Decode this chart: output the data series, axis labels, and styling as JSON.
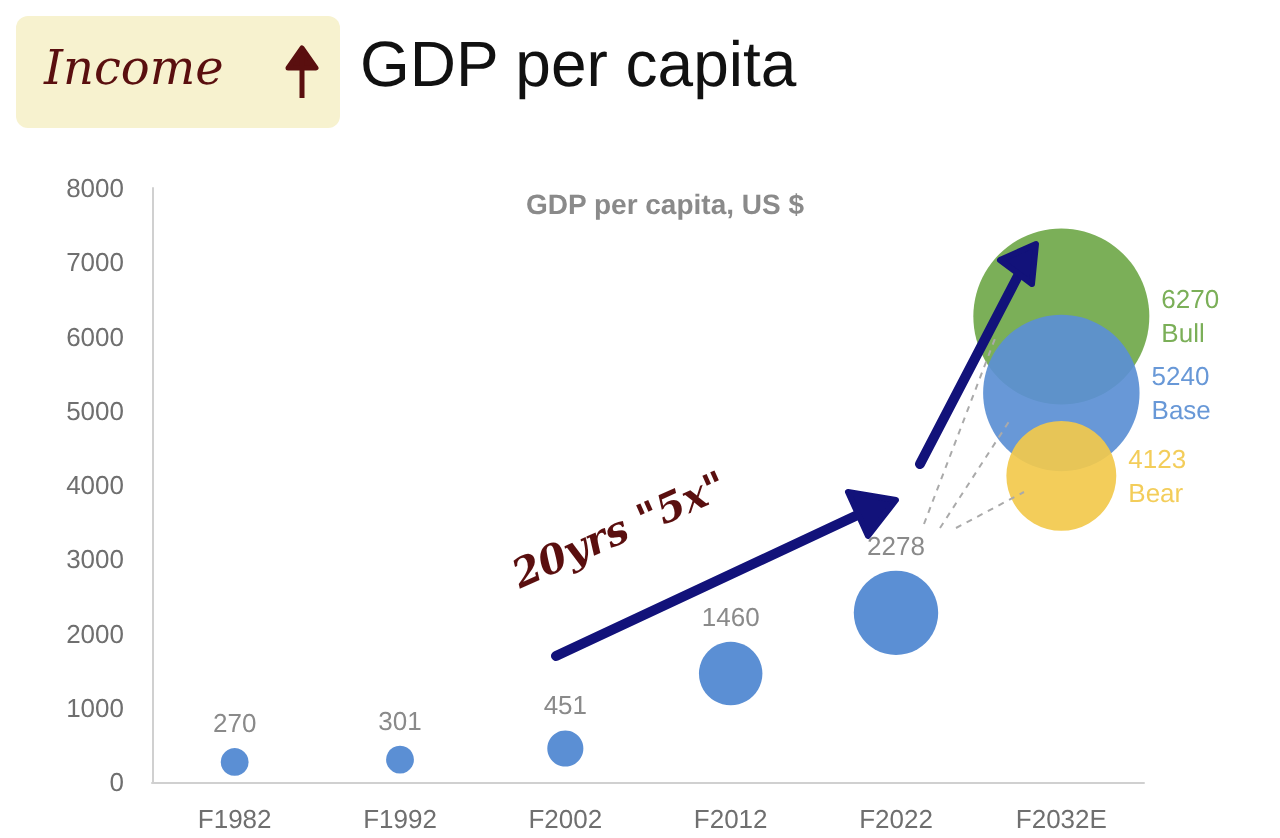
{
  "chart_data": {
    "type": "bubble",
    "title": "GDP per capita",
    "subtitle": "GDP per capita, US $",
    "annotations": [
      "Income",
      "20yrs \"5x\""
    ],
    "categories": [
      "F1982",
      "F1992",
      "F2002",
      "F2012",
      "F2022",
      "F2032E"
    ],
    "series": [
      {
        "color": "#5b8fd4",
        "values": [
          270,
          301,
          451,
          1460,
          2278,
          null
        ],
        "sizes": [
          0.025,
          0.025,
          0.042,
          0.13,
          0.23,
          null
        ],
        "value_labels": [
          "270",
          "301",
          "451",
          "1460",
          "2278",
          null
        ]
      },
      {
        "name": "Bull",
        "color": "#70a84a",
        "x": [
          "F2032E"
        ],
        "values": [
          6270
        ],
        "sizes": [
          1
        ],
        "value_labels": [
          "6270"
        ]
      },
      {
        "name": "Base",
        "color": "#5b8fd4",
        "x": [
          "F2032E"
        ],
        "values": [
          5240
        ],
        "sizes": [
          0.79
        ],
        "value_labels": [
          "5240"
        ]
      },
      {
        "name": "Bear",
        "color": "#f2c94c",
        "x": [
          "F2032E"
        ],
        "values": [
          4123
        ],
        "sizes": [
          0.39
        ],
        "value_labels": [
          "4123"
        ]
      }
    ],
    "ylim": [
      0,
      8000
    ],
    "yticks": [
      0,
      1000,
      2000,
      3000,
      4000,
      5000,
      6000,
      7000,
      8000
    ],
    "grid": false,
    "legend": false
  }
}
